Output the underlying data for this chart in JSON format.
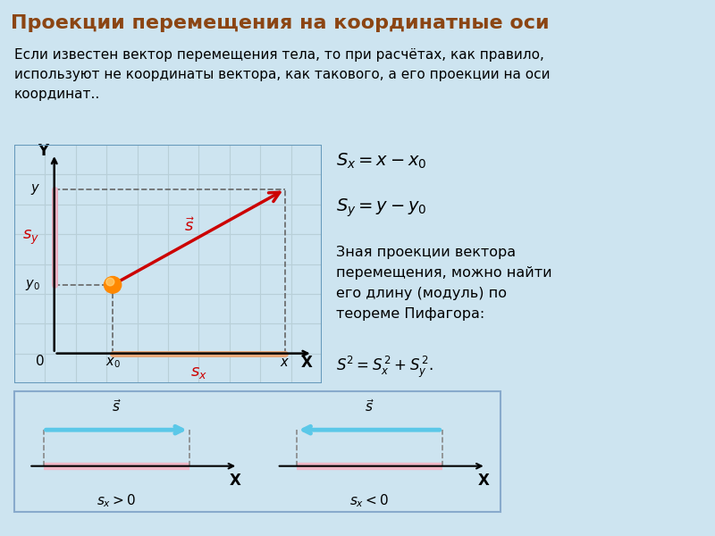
{
  "title": "Проекции перемещения на координатные оси",
  "title_bg_color": "#4a8fa0",
  "title_text_color": "#8B4513",
  "body_bg_color": "#cde4f0",
  "intro_text": "Если известен вектор перемещения тела, то при расчётах, как правило,\nиспользуют не координаты вектора, как такового, а его проекции на оси\nкоординат..",
  "formula_sx": "$S_x = x -  x_0$",
  "formula_sy": "$S_y = y - y_0$",
  "formula_desc": "Зная проекции вектора\nперемещения, можно найти\nего длину (модуль) по\nтеореме Пифагора:",
  "formula_pythagoras": "$S^2 = S_x^{\\,2} + S_y^{\\,2}.$",
  "grid_color": "#b8cfd8",
  "vector_color": "#cc0000",
  "sx_label_color": "#cc0000",
  "sy_label_color": "#cc0000",
  "sx_line_color": "#e8a878",
  "sy_line_color": "#e8b0c0",
  "dashed_color": "#666666",
  "ball_color": "#ff8800",
  "diagram_bg": "#e4f0f8",
  "bottom_panel_bg": "#ddeef8",
  "bottom_arrow_color": "#5bc8e8",
  "bottom_proj_color": "#f0b8c8",
  "bottom_border_color": "#88aacc"
}
